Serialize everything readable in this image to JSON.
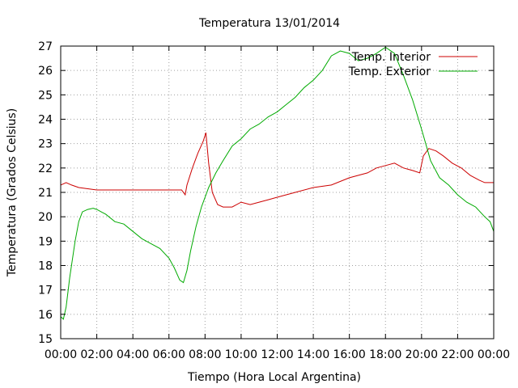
{
  "chart_data": {
    "type": "line",
    "title": "Temperatura 13/01/2014",
    "xlabel": "Tiempo (Hora Local Argentina)",
    "ylabel": "Temperatura (Grados Celsius)",
    "xlim": [
      0,
      24
    ],
    "ylim": [
      15,
      27
    ],
    "grid": true,
    "legend_position": "top-right",
    "x_ticks": [
      {
        "value": 0,
        "label": "00:00"
      },
      {
        "value": 2,
        "label": "02:00"
      },
      {
        "value": 4,
        "label": "04:00"
      },
      {
        "value": 6,
        "label": "06:00"
      },
      {
        "value": 8,
        "label": "08:00"
      },
      {
        "value": 10,
        "label": "10:00"
      },
      {
        "value": 12,
        "label": "12:00"
      },
      {
        "value": 14,
        "label": "14:00"
      },
      {
        "value": 16,
        "label": "16:00"
      },
      {
        "value": 18,
        "label": "18:00"
      },
      {
        "value": 20,
        "label": "20:00"
      },
      {
        "value": 22,
        "label": "22:00"
      },
      {
        "value": 24,
        "label": "00:00"
      }
    ],
    "y_ticks": [
      {
        "value": 15,
        "label": "15"
      },
      {
        "value": 16,
        "label": "16"
      },
      {
        "value": 17,
        "label": "17"
      },
      {
        "value": 18,
        "label": "18"
      },
      {
        "value": 19,
        "label": "19"
      },
      {
        "value": 20,
        "label": "20"
      },
      {
        "value": 21,
        "label": "21"
      },
      {
        "value": 22,
        "label": "22"
      },
      {
        "value": 23,
        "label": "23"
      },
      {
        "value": 24,
        "label": "24"
      },
      {
        "value": 25,
        "label": "25"
      },
      {
        "value": 26,
        "label": "26"
      },
      {
        "value": 27,
        "label": "27"
      }
    ],
    "series": [
      {
        "name": "Temp. Interior",
        "color": "#cc0000",
        "points": [
          [
            0,
            21.3
          ],
          [
            0.3,
            21.4
          ],
          [
            0.6,
            21.3
          ],
          [
            1.0,
            21.2
          ],
          [
            1.5,
            21.15
          ],
          [
            2.0,
            21.1
          ],
          [
            3.0,
            21.1
          ],
          [
            4.0,
            21.1
          ],
          [
            5.0,
            21.1
          ],
          [
            6.0,
            21.1
          ],
          [
            6.7,
            21.1
          ],
          [
            6.9,
            20.9
          ],
          [
            7.0,
            21.3
          ],
          [
            7.3,
            22.0
          ],
          [
            7.6,
            22.6
          ],
          [
            7.9,
            23.1
          ],
          [
            8.05,
            23.45
          ],
          [
            8.2,
            22.2
          ],
          [
            8.4,
            21.0
          ],
          [
            8.7,
            20.5
          ],
          [
            9.0,
            20.4
          ],
          [
            9.5,
            20.4
          ],
          [
            10.0,
            20.6
          ],
          [
            10.5,
            20.5
          ],
          [
            11.0,
            20.6
          ],
          [
            11.5,
            20.7
          ],
          [
            12.0,
            20.8
          ],
          [
            13.0,
            21.0
          ],
          [
            14.0,
            21.2
          ],
          [
            15.0,
            21.3
          ],
          [
            16.0,
            21.6
          ],
          [
            17.0,
            21.8
          ],
          [
            17.5,
            22.0
          ],
          [
            18.0,
            22.1
          ],
          [
            18.5,
            22.2
          ],
          [
            19.0,
            22.0
          ],
          [
            19.5,
            21.9
          ],
          [
            19.9,
            21.8
          ],
          [
            20.1,
            22.5
          ],
          [
            20.4,
            22.8
          ],
          [
            20.8,
            22.7
          ],
          [
            21.2,
            22.5
          ],
          [
            21.7,
            22.2
          ],
          [
            22.2,
            22.0
          ],
          [
            22.7,
            21.7
          ],
          [
            23.2,
            21.5
          ],
          [
            23.5,
            21.4
          ],
          [
            24.0,
            21.4
          ]
        ]
      },
      {
        "name": "Temp. Exterior",
        "color": "#00aa00",
        "points": [
          [
            0,
            15.9
          ],
          [
            0.15,
            15.8
          ],
          [
            0.3,
            16.3
          ],
          [
            0.5,
            17.5
          ],
          [
            0.8,
            19.0
          ],
          [
            1.0,
            19.8
          ],
          [
            1.2,
            20.2
          ],
          [
            1.5,
            20.3
          ],
          [
            1.8,
            20.35
          ],
          [
            2.0,
            20.3
          ],
          [
            2.5,
            20.1
          ],
          [
            3.0,
            19.8
          ],
          [
            3.5,
            19.7
          ],
          [
            4.0,
            19.4
          ],
          [
            4.5,
            19.1
          ],
          [
            5.0,
            18.9
          ],
          [
            5.5,
            18.7
          ],
          [
            6.0,
            18.3
          ],
          [
            6.3,
            17.9
          ],
          [
            6.6,
            17.4
          ],
          [
            6.8,
            17.3
          ],
          [
            7.0,
            17.8
          ],
          [
            7.2,
            18.6
          ],
          [
            7.5,
            19.6
          ],
          [
            7.8,
            20.4
          ],
          [
            8.2,
            21.2
          ],
          [
            8.6,
            21.8
          ],
          [
            9.0,
            22.3
          ],
          [
            9.5,
            22.9
          ],
          [
            10.0,
            23.2
          ],
          [
            10.5,
            23.6
          ],
          [
            11.0,
            23.8
          ],
          [
            11.5,
            24.1
          ],
          [
            12.0,
            24.3
          ],
          [
            12.5,
            24.6
          ],
          [
            13.0,
            24.9
          ],
          [
            13.5,
            25.3
          ],
          [
            14.0,
            25.6
          ],
          [
            14.5,
            26.0
          ],
          [
            15.0,
            26.6
          ],
          [
            15.5,
            26.8
          ],
          [
            16.0,
            26.7
          ],
          [
            16.5,
            26.4
          ],
          [
            17.0,
            26.5
          ],
          [
            17.5,
            26.7
          ],
          [
            18.0,
            26.95
          ],
          [
            18.5,
            26.7
          ],
          [
            19.0,
            25.8
          ],
          [
            19.5,
            24.8
          ],
          [
            20.0,
            23.6
          ],
          [
            20.5,
            22.3
          ],
          [
            21.0,
            21.6
          ],
          [
            21.5,
            21.3
          ],
          [
            22.0,
            20.9
          ],
          [
            22.5,
            20.6
          ],
          [
            23.0,
            20.4
          ],
          [
            23.5,
            20.0
          ],
          [
            23.8,
            19.8
          ],
          [
            24.0,
            19.4
          ]
        ]
      }
    ]
  }
}
